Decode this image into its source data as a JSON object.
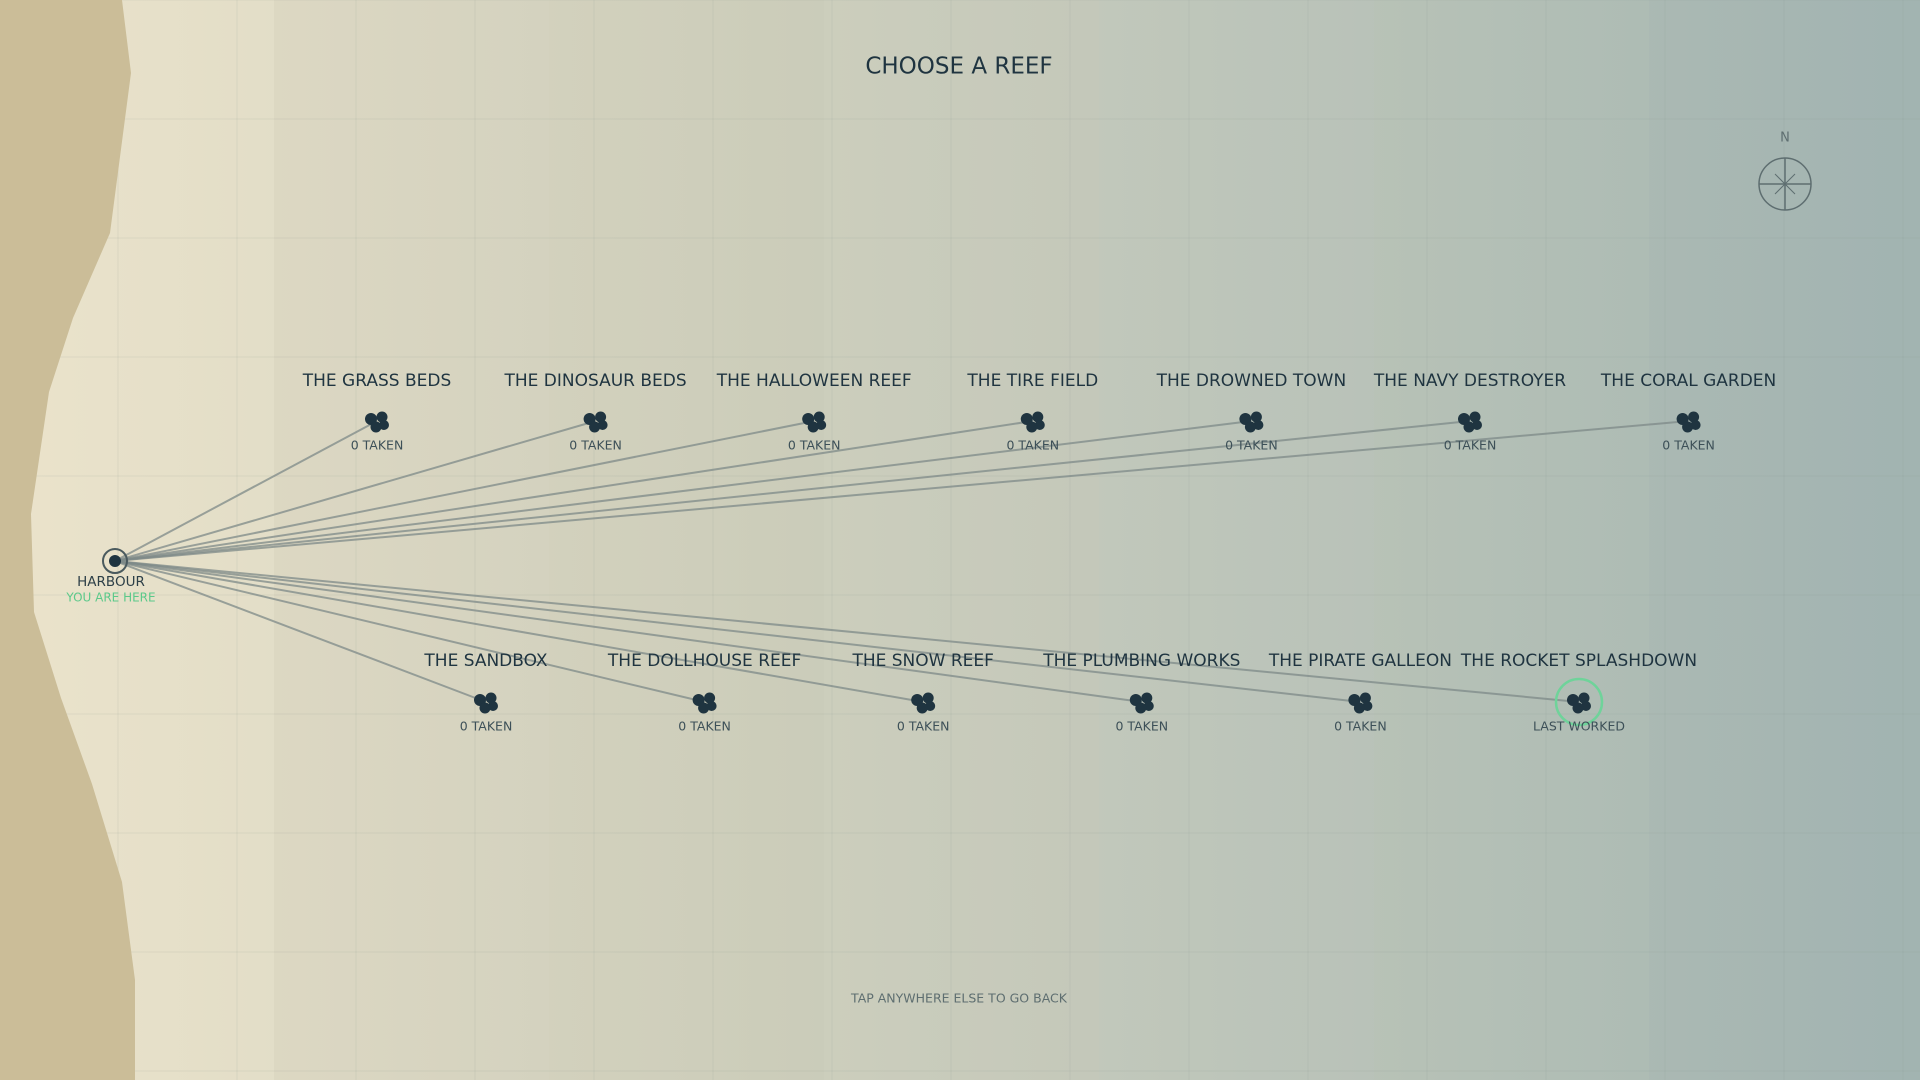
{
  "header": {
    "title": "CHOOSE A REEF"
  },
  "compass": {
    "label": "N"
  },
  "harbour": {
    "name": "HARBOUR",
    "note": "YOU ARE HERE"
  },
  "reefs": {
    "top": [
      {
        "name": "THE GRASS BEDS",
        "status": "0 TAKEN"
      },
      {
        "name": "THE DINOSAUR BEDS",
        "status": "0 TAKEN"
      },
      {
        "name": "THE HALLOWEEN REEF",
        "status": "0 TAKEN"
      },
      {
        "name": "THE TIRE FIELD",
        "status": "0 TAKEN"
      },
      {
        "name": "THE DROWNED TOWN",
        "status": "0 TAKEN"
      },
      {
        "name": "THE NAVY DESTROYER",
        "status": "0 TAKEN"
      },
      {
        "name": "THE CORAL GARDEN",
        "status": "0 TAKEN"
      }
    ],
    "bottom": [
      {
        "name": "THE SANDBOX",
        "status": "0 TAKEN"
      },
      {
        "name": "THE DOLLHOUSE REEF",
        "status": "0 TAKEN"
      },
      {
        "name": "THE SNOW REEF",
        "status": "0 TAKEN"
      },
      {
        "name": "THE PLUMBING WORKS",
        "status": "0 TAKEN"
      },
      {
        "name": "THE PIRATE GALLEON",
        "status": "0 TAKEN"
      },
      {
        "name": "THE ROCKET SPLASHDOWN",
        "status": "LAST WORKED",
        "selected": true
      }
    ]
  },
  "footer": {
    "hint": "TAP ANYWHERE ELSE TO GO BACK"
  }
}
